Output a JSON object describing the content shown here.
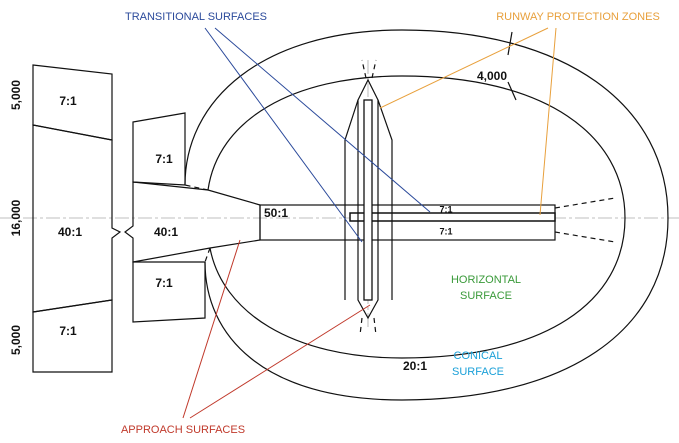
{
  "callouts": {
    "transitional": "TRANSITIONAL SURFACES",
    "rpz": "RUNWAY PROTECTION ZONES",
    "approach": "APPROACH SURFACES"
  },
  "dimensions": {
    "conical_width": "4,000",
    "top": "5,000",
    "middle": "16,000",
    "bottom": "5,000"
  },
  "slopes": [
    "7:1",
    "40:1",
    "7:1",
    "7:1",
    "40:1",
    "7:1",
    "50:1",
    "7:1",
    "7:1",
    "20:1"
  ],
  "surfaces": {
    "horizontal": [
      "HORIZONTAL",
      "SURFACE"
    ],
    "conical": [
      "CONICAL",
      "SURFACE"
    ]
  }
}
